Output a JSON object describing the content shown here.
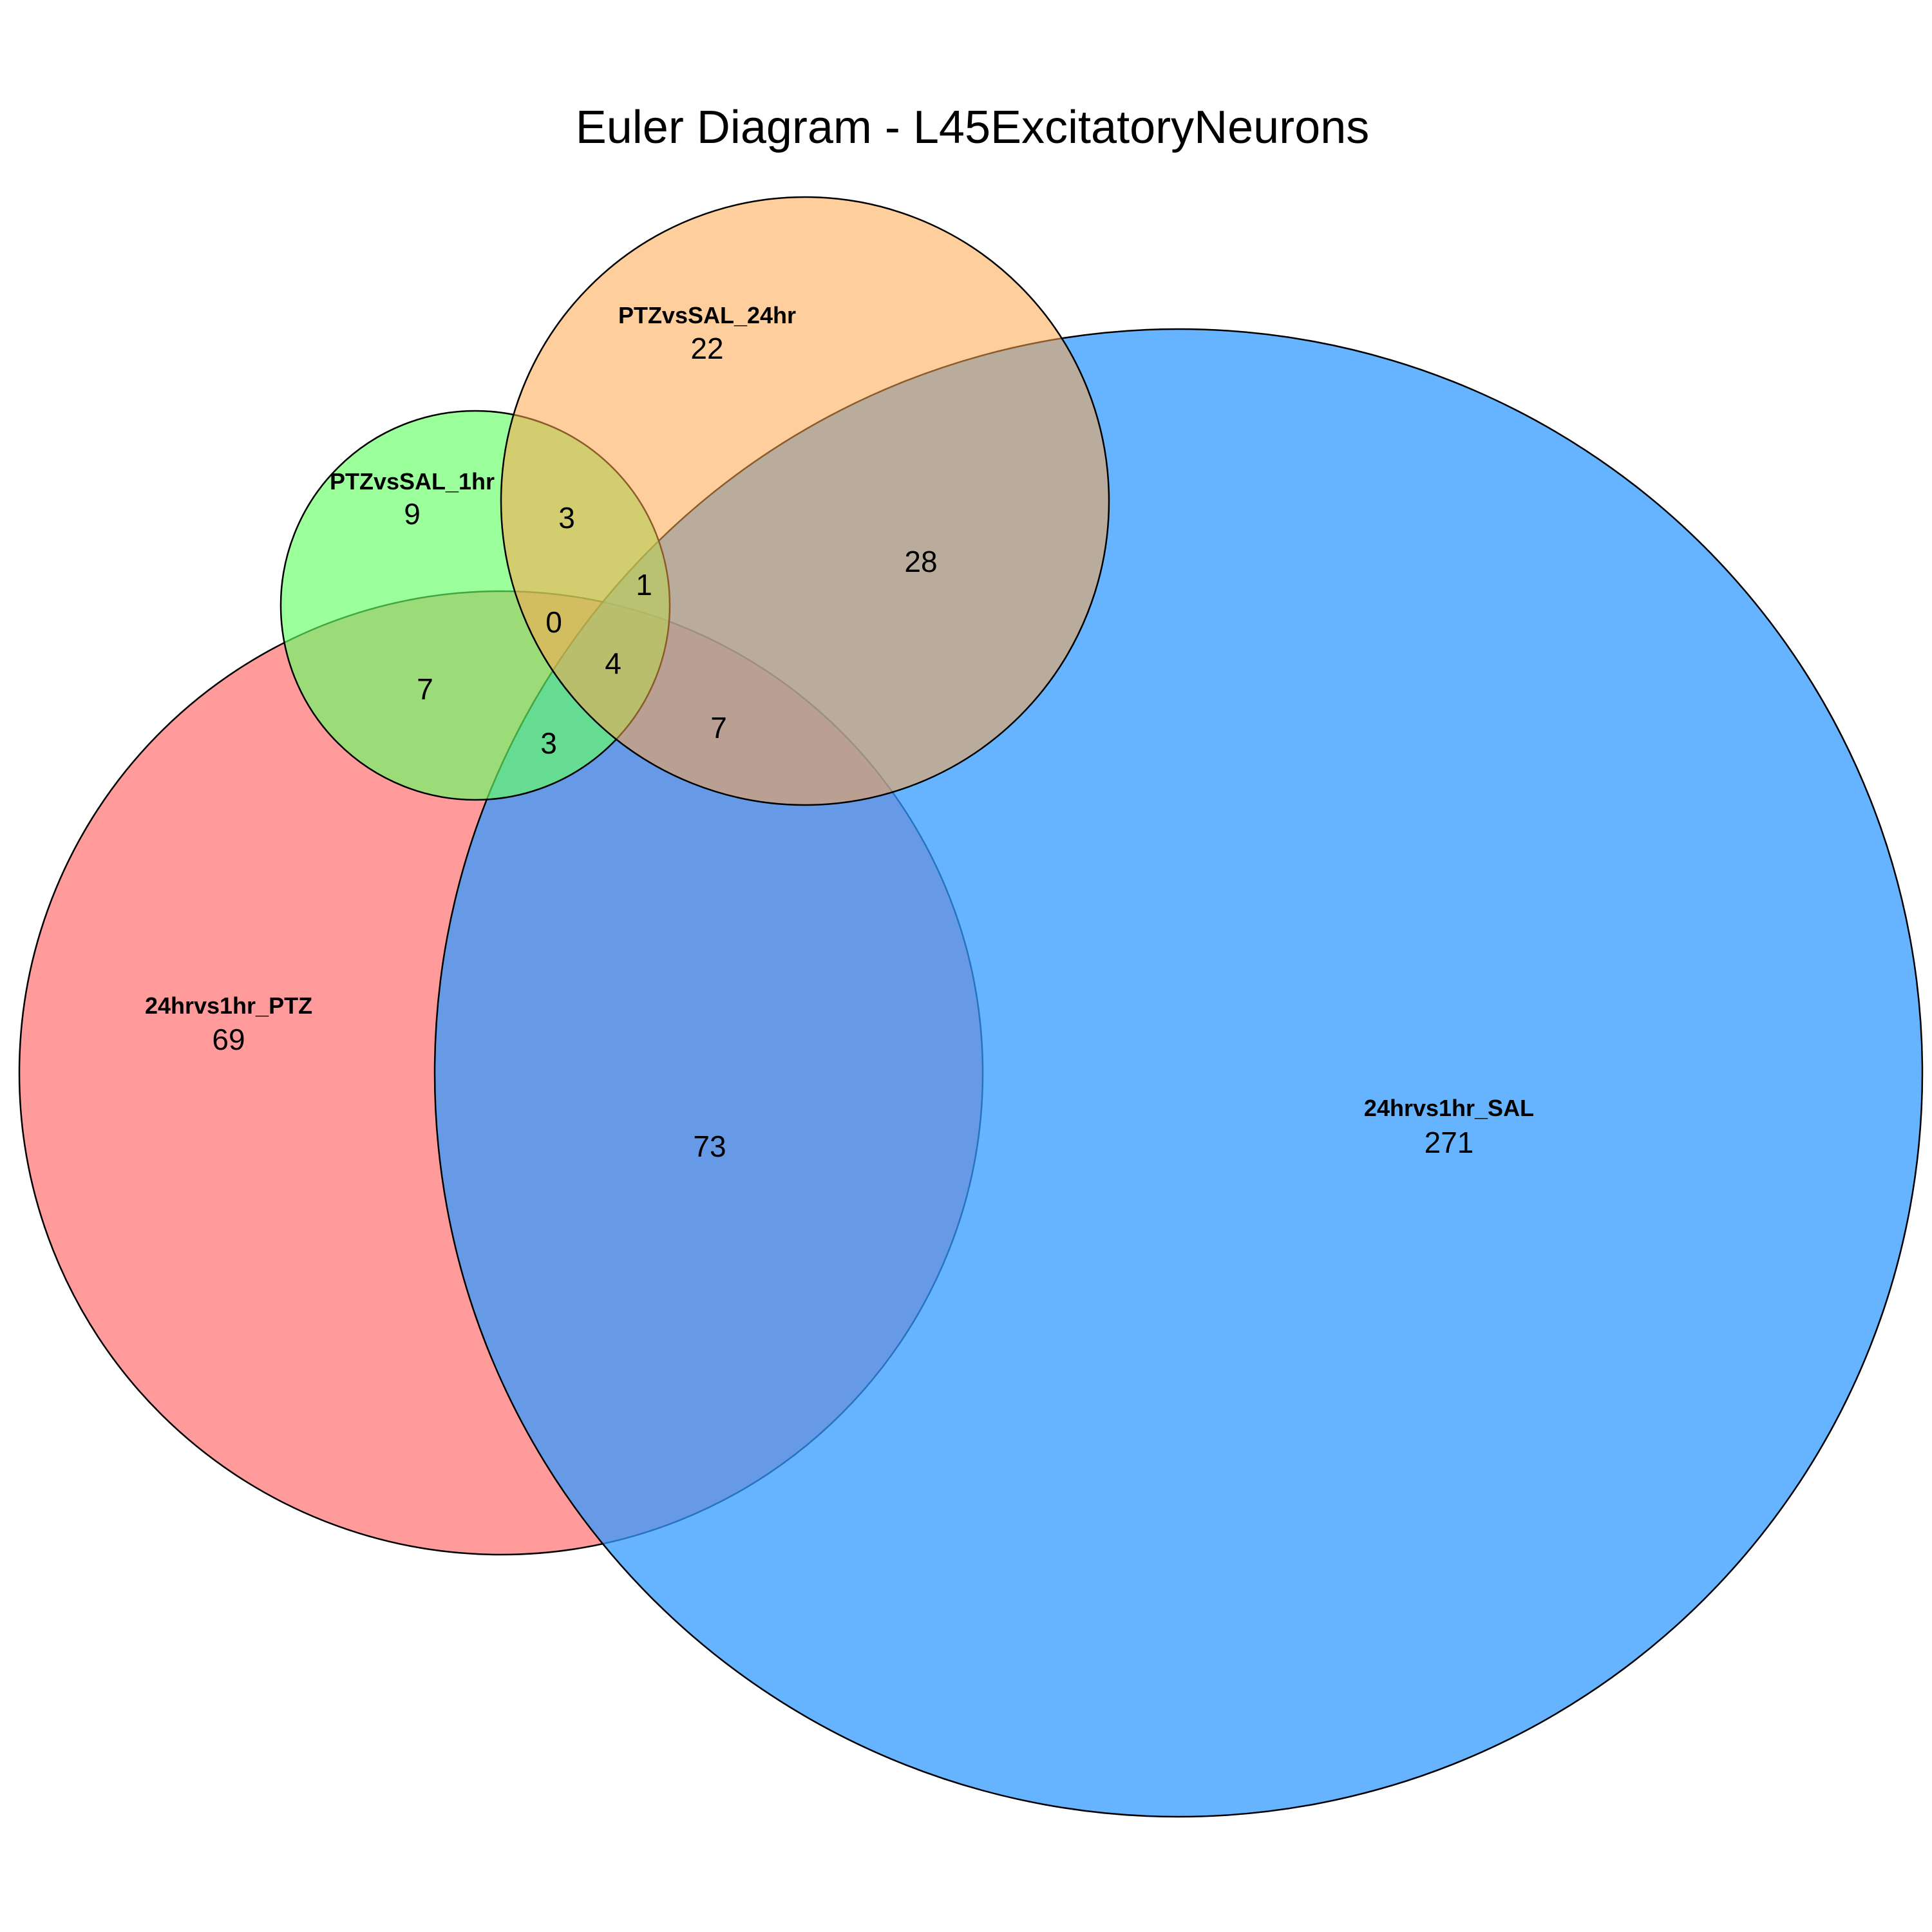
{
  "title": "Euler Diagram - L45ExcitatoryNeurons",
  "sets": [
    {
      "id": "ptz",
      "name": "24hrvs1hr_PTZ",
      "color": "#FF6666",
      "unique_count": "69"
    },
    {
      "id": "sal",
      "name": "24hrvs1hr_SAL",
      "color": "#3399FF",
      "unique_count": "271"
    },
    {
      "id": "h1",
      "name": "PTZvsSAL_1hr",
      "color": "#66FF66",
      "unique_count": "9"
    },
    {
      "id": "h24",
      "name": "PTZvsSAL_24hr",
      "color": "#FFA64D",
      "unique_count": "22"
    }
  ],
  "intersections": [
    {
      "sets": [
        "24hrvs1hr_PTZ",
        "24hrvs1hr_SAL"
      ],
      "count": "73"
    },
    {
      "sets": [
        "24hrvs1hr_SAL",
        "PTZvsSAL_24hr"
      ],
      "count": "28"
    },
    {
      "sets": [
        "PTZvsSAL_1hr",
        "PTZvsSAL_24hr"
      ],
      "count": "3"
    },
    {
      "sets": [
        "24hrvs1hr_PTZ",
        "PTZvsSAL_1hr"
      ],
      "count": "7"
    },
    {
      "sets": [
        "24hrvs1hr_PTZ",
        "24hrvs1hr_SAL",
        "PTZvsSAL_24hr"
      ],
      "count": "7"
    },
    {
      "sets": [
        "24hrvs1hr_PTZ",
        "24hrvs1hr_SAL",
        "PTZvsSAL_1hr"
      ],
      "count": "3"
    },
    {
      "sets": [
        "24hrvs1hr_SAL",
        "PTZvsSAL_1hr",
        "PTZvsSAL_24hr"
      ],
      "count": "1"
    },
    {
      "sets": [
        "24hrvs1hr_PTZ",
        "PTZvsSAL_1hr",
        "PTZvsSAL_24hr"
      ],
      "count": "0"
    },
    {
      "sets": [
        "24hrvs1hr_PTZ",
        "24hrvs1hr_SAL",
        "PTZvsSAL_1hr",
        "PTZvsSAL_24hr"
      ],
      "count": "4"
    }
  ]
}
